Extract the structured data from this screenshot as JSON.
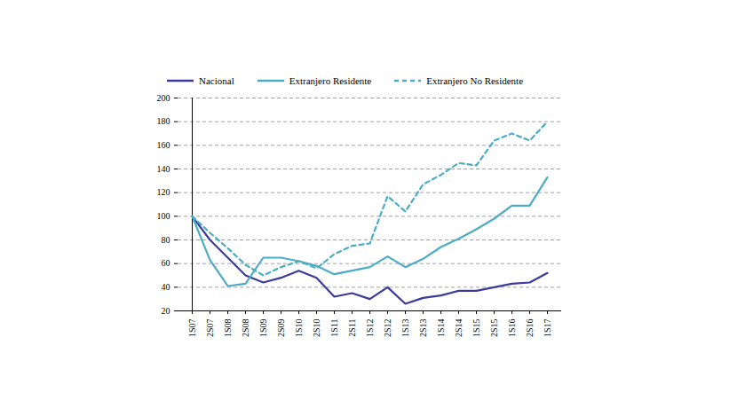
{
  "chart_data": {
    "type": "line",
    "categories": [
      "1S07",
      "2S07",
      "1S08",
      "2S08",
      "1S09",
      "2S09",
      "1S10",
      "2S10",
      "1S11",
      "2S11",
      "1S12",
      "2S12",
      "1S13",
      "2S13",
      "1S14",
      "2S14",
      "1S15",
      "2S15",
      "1S16",
      "2S16",
      "1S17"
    ],
    "series": [
      {
        "name": "Nacional",
        "color": "#3b3b9c",
        "line_style": "solid",
        "values": [
          100,
          80,
          65,
          50,
          44,
          48,
          54,
          48,
          32,
          35,
          30,
          40,
          26,
          31,
          33,
          37,
          37,
          40,
          43,
          44,
          52
        ]
      },
      {
        "name": "Extranjero Residente",
        "color": "#4bacc6",
        "line_style": "solid",
        "values": [
          100,
          63,
          41,
          43,
          65,
          65,
          62,
          58,
          51,
          54,
          57,
          66,
          57,
          64,
          74,
          81,
          89,
          98,
          109,
          109,
          133
        ]
      },
      {
        "name": "Extranjero No Residente",
        "color": "#4bacc6",
        "line_style": "dashed",
        "values": [
          100,
          86,
          73,
          59,
          50,
          57,
          62,
          56,
          68,
          75,
          77,
          117,
          104,
          127,
          135,
          145,
          143,
          164,
          170,
          164,
          180
        ]
      }
    ],
    "ylim": [
      20,
      200
    ],
    "yticks": [
      20,
      40,
      60,
      80,
      100,
      120,
      140,
      160,
      180,
      200
    ],
    "grid": true,
    "legend": "top"
  }
}
